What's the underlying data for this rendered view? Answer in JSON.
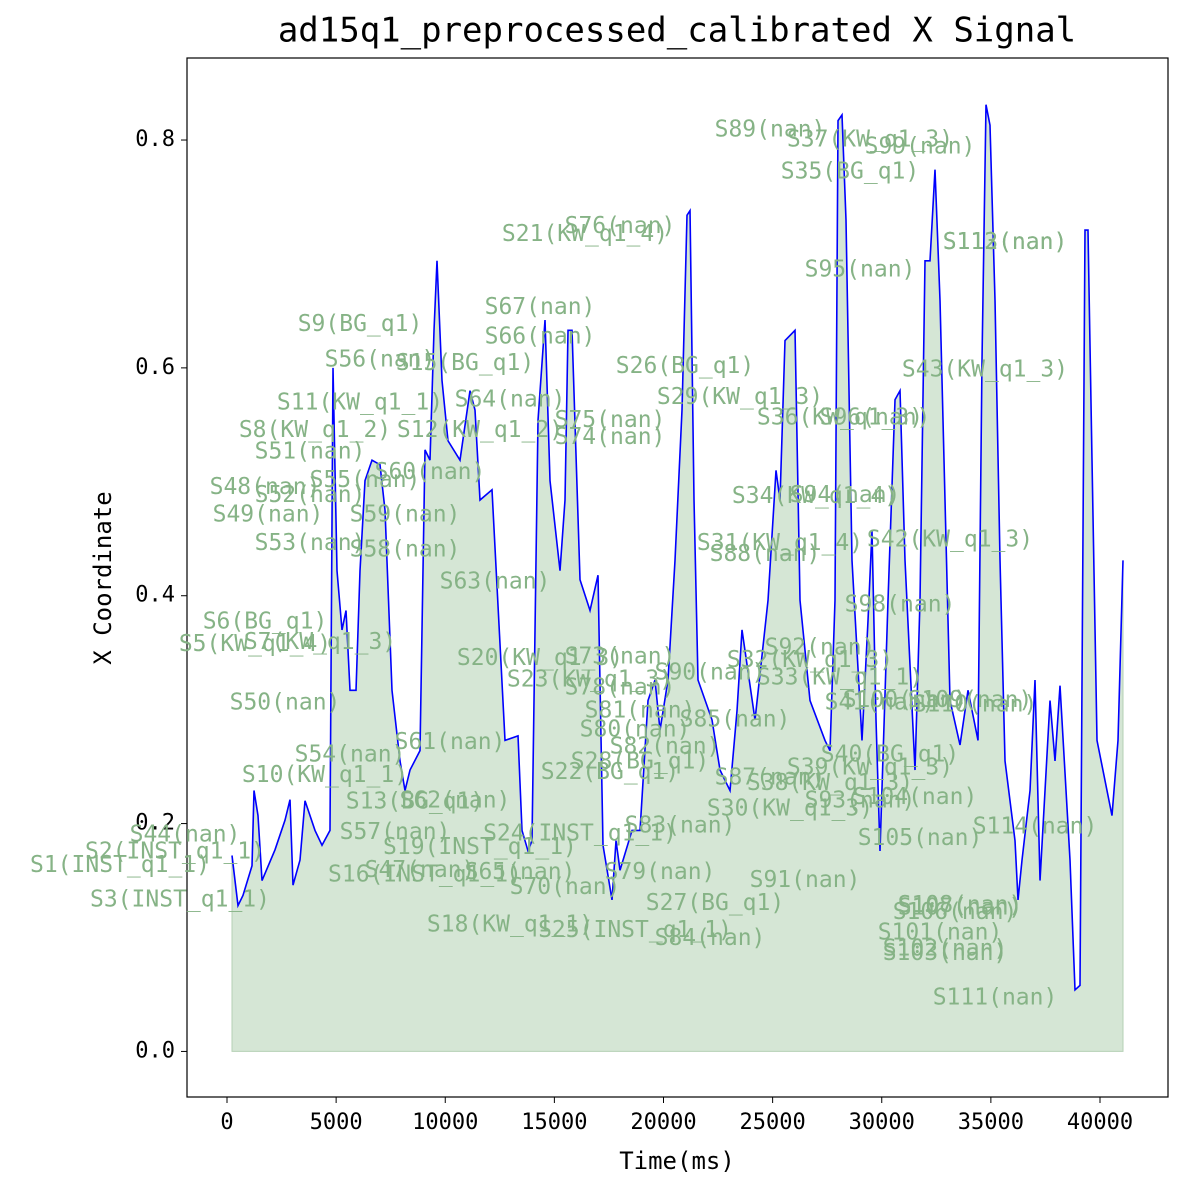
{
  "chart_data": {
    "type": "line",
    "title": "ad15q1_preprocessed_calibrated X Signal",
    "xlabel": "Time(ms)",
    "ylabel": "X Coordinate",
    "xlim": [
      -1833,
      43116
    ],
    "ylim": [
      -0.04,
      0.872
    ],
    "xticks": [
      0,
      5000,
      10000,
      15000,
      20000,
      25000,
      30000,
      35000,
      40000
    ],
    "yticks": [
      {
        "value": 0,
        "label": "0.0"
      },
      0.2,
      0.4,
      0.6,
      0.8
    ],
    "grid": false,
    "fill_color": "#d5e6d5",
    "fill_edge": "#b5d0b5",
    "annotation_color": "#86b386",
    "series": [
      {
        "color": "blue",
        "x": [
          229,
          504,
          733,
          1146,
          1237,
          1420,
          1604,
          2199,
          2658,
          2887,
          3024,
          3345,
          3574,
          4032,
          4353,
          4719,
          4857,
          5040,
          5269,
          5453,
          5636,
          5911,
          6094,
          6323,
          6644,
          7010,
          7240,
          7560,
          7927,
          8156,
          8385,
          8843,
          9072,
          9301,
          9485,
          9622,
          9851,
          10126,
          10676,
          11134,
          11363,
          11592,
          12142,
          12738,
          13334,
          13517,
          13792,
          13975,
          14250,
          14571,
          14800,
          15258,
          15487,
          15625,
          15808,
          16175,
          16633,
          16999,
          17228,
          17641,
          17824,
          18007,
          18557,
          18924,
          19290,
          19611,
          19840,
          20207,
          20527,
          20848,
          21077,
          21215,
          21398,
          21581,
          22223,
          22589,
          23048,
          23368,
          23597,
          24193,
          24789,
          25155,
          25338,
          25567,
          26026,
          26255,
          26713,
          27400,
          27629,
          27858,
          27996,
          28179,
          28362,
          28637,
          29095,
          29370,
          29553,
          29737,
          29920,
          30287,
          30608,
          30837,
          31066,
          31524,
          31753,
          31982,
          32211,
          32440,
          32670,
          33128,
          33586,
          33953,
          34411,
          34594,
          34777,
          34960,
          35190,
          35419,
          35648,
          36106,
          36244,
          36427,
          36794,
          37022,
          37252,
          37710,
          37939,
          38168,
          38626,
          38855,
          39084,
          39313,
          39450,
          39634,
          39863,
          40550,
          40825,
          41054
        ],
        "values": [
          0.172,
          0.128,
          0.137,
          0.163,
          0.229,
          0.207,
          0.15,
          0.177,
          0.203,
          0.221,
          0.146,
          0.168,
          0.22,
          0.194,
          0.181,
          0.194,
          0.6,
          0.422,
          0.37,
          0.387,
          0.317,
          0.317,
          0.422,
          0.501,
          0.519,
          0.515,
          0.475,
          0.317,
          0.255,
          0.229,
          0.247,
          0.264,
          0.528,
          0.519,
          0.633,
          0.694,
          0.589,
          0.536,
          0.519,
          0.58,
          0.563,
          0.484,
          0.493,
          0.273,
          0.277,
          0.194,
          0.176,
          0.185,
          0.554,
          0.642,
          0.501,
          0.422,
          0.484,
          0.633,
          0.633,
          0.414,
          0.387,
          0.418,
          0.181,
          0.133,
          0.185,
          0.159,
          0.194,
          0.194,
          0.308,
          0.326,
          0.282,
          0.326,
          0.431,
          0.563,
          0.734,
          0.738,
          0.484,
          0.326,
          0.291,
          0.247,
          0.229,
          0.299,
          0.37,
          0.291,
          0.396,
          0.51,
          0.484,
          0.624,
          0.633,
          0.396,
          0.308,
          0.273,
          0.264,
          0.396,
          0.817,
          0.822,
          0.73,
          0.431,
          0.273,
          0.378,
          0.457,
          0.291,
          0.176,
          0.396,
          0.572,
          0.58,
          0.431,
          0.247,
          0.396,
          0.694,
          0.694,
          0.774,
          0.659,
          0.308,
          0.269,
          0.317,
          0.273,
          0.607,
          0.831,
          0.813,
          0.659,
          0.431,
          0.255,
          0.185,
          0.133,
          0.168,
          0.229,
          0.326,
          0.15,
          0.308,
          0.255,
          0.321,
          0.168,
          0.054,
          0.058,
          0.721,
          0.721,
          0.519,
          0.273,
          0.207,
          0.273,
          0.431
        ]
      }
    ],
    "annotations": [
      {
        "text": "S1(INST_q1_1)",
        "x": -4903,
        "y": 0.163
      },
      {
        "text": "S2(INST_q1_1)",
        "x": -2383,
        "y": 0.175
      },
      {
        "text": "S3(INST_q1_1)",
        "x": -2154,
        "y": 0.133
      },
      {
        "text": "S44(nan)",
        "x": -1924,
        "y": 0.19
      },
      {
        "text": "S5(KW_q1_4)",
        "x": 1283,
        "y": 0.357
      },
      {
        "text": "S6(BG_q1)",
        "x": 1741,
        "y": 0.377
      },
      {
        "text": "S7(KW_q1_3)",
        "x": 4261,
        "y": 0.359
      },
      {
        "text": "S8(KW_q1_2)",
        "x": 4032,
        "y": 0.545
      },
      {
        "text": "S9(BG_q1)",
        "x": 6094,
        "y": 0.638
      },
      {
        "text": "S10(KW_q1_1)",
        "x": 4490,
        "y": 0.242
      },
      {
        "text": "S11(KW_q1_1)",
        "x": 6094,
        "y": 0.569
      },
      {
        "text": "S12(KW_q1_2)",
        "x": 11592,
        "y": 0.545
      },
      {
        "text": "S13(BG_q1)",
        "x": 8614,
        "y": 0.219
      },
      {
        "text": "S15(BG_q1)",
        "x": 10905,
        "y": 0.604
      },
      {
        "text": "S16(INST_q1_1)",
        "x": 9072,
        "y": 0.155
      },
      {
        "text": "S18(KW_q1_1)",
        "x": 12967,
        "y": 0.111
      },
      {
        "text": "S19(INST_q1_1)",
        "x": 11592,
        "y": 0.179
      },
      {
        "text": "S20(KW_q1_3)",
        "x": 14342,
        "y": 0.345
      },
      {
        "text": "S21(KW_q1_4)",
        "x": 16404,
        "y": 0.717
      },
      {
        "text": "S22(BG_q1)",
        "x": 17549,
        "y": 0.245
      },
      {
        "text": "S23(KW_q1_3)",
        "x": 16633,
        "y": 0.326
      },
      {
        "text": "S24(INST_q1_1)",
        "x": 16175,
        "y": 0.191
      },
      {
        "text": "S25(INST_q1_1)",
        "x": 18695,
        "y": 0.106
      },
      {
        "text": "S26(BG_q1)",
        "x": 20986,
        "y": 0.601
      },
      {
        "text": "S27(BG_q1)",
        "x": 22360,
        "y": 0.13
      },
      {
        "text": "S28(BG_q1)",
        "x": 18924,
        "y": 0.254
      },
      {
        "text": "S29(KW_q1_3)",
        "x": 23506,
        "y": 0.574
      },
      {
        "text": "S30(KW_q1_3)",
        "x": 25797,
        "y": 0.213
      },
      {
        "text": "S31(KW_q1_4)",
        "x": 25338,
        "y": 0.446
      },
      {
        "text": "S32(KW_q1_3)",
        "x": 26713,
        "y": 0.343
      },
      {
        "text": "S33(KW_q1_1)",
        "x": 28087,
        "y": 0.328
      },
      {
        "text": "S34(KW_q1_4)",
        "x": 26942,
        "y": 0.487
      },
      {
        "text": "S35(BG_q1)",
        "x": 28546,
        "y": 0.772
      },
      {
        "text": "S36(KW_q1_3)",
        "x": 28087,
        "y": 0.556
      },
      {
        "text": "S37(KW_q1_3)",
        "x": 29462,
        "y": 0.8
      },
      {
        "text": "S38(KW_q1_3)",
        "x": 27629,
        "y": 0.235
      },
      {
        "text": "S39(KW_q1_3)",
        "x": 29462,
        "y": 0.249
      },
      {
        "text": "S40(BG_q1)",
        "x": 30379,
        "y": 0.26
      },
      {
        "text": "S41(nan)",
        "x": 29920,
        "y": 0.306
      },
      {
        "text": "S42(KW_q1_3)",
        "x": 33128,
        "y": 0.449
      },
      {
        "text": "S43(KW_q1_3)",
        "x": 34731,
        "y": 0.598
      },
      {
        "text": "S47(nan)",
        "x": 8843,
        "y": 0.159
      },
      {
        "text": "S48(nan)",
        "x": 1741,
        "y": 0.495
      },
      {
        "text": "S49(nan)",
        "x": 1879,
        "y": 0.471
      },
      {
        "text": "S50(nan)",
        "x": 2658,
        "y": 0.306
      },
      {
        "text": "S51(nan)",
        "x": 3803,
        "y": 0.526
      },
      {
        "text": "S52(nan)",
        "x": 3803,
        "y": 0.488
      },
      {
        "text": "S53(nan)",
        "x": 3803,
        "y": 0.446
      },
      {
        "text": "S54(nan)",
        "x": 5636,
        "y": 0.26
      },
      {
        "text": "S55(nan)",
        "x": 6323,
        "y": 0.501
      },
      {
        "text": "S56(nan)",
        "x": 7010,
        "y": 0.607
      },
      {
        "text": "S57(nan)",
        "x": 7698,
        "y": 0.192
      },
      {
        "text": "S58(nan)",
        "x": 8156,
        "y": 0.44
      },
      {
        "text": "S59(nan)",
        "x": 8156,
        "y": 0.471
      },
      {
        "text": "S60(nan)",
        "x": 9301,
        "y": 0.508
      },
      {
        "text": "S61(nan)",
        "x": 10218,
        "y": 0.271
      },
      {
        "text": "S62(nan)",
        "x": 10447,
        "y": 0.22
      },
      {
        "text": "S63(nan)",
        "x": 12280,
        "y": 0.412
      },
      {
        "text": "S64(nan)",
        "x": 12967,
        "y": 0.572
      },
      {
        "text": "S65(nan)",
        "x": 13425,
        "y": 0.157
      },
      {
        "text": "S66(nan)",
        "x": 14342,
        "y": 0.627
      },
      {
        "text": "S67(nan)",
        "x": 14342,
        "y": 0.653
      },
      {
        "text": "S70(nan)",
        "x": 15487,
        "y": 0.144
      },
      {
        "text": "S73(nan)",
        "x": 18007,
        "y": 0.346
      },
      {
        "text": "S74(nan)",
        "x": 17549,
        "y": 0.539
      },
      {
        "text": "S75(nan)",
        "x": 17549,
        "y": 0.554
      },
      {
        "text": "S76(nan)",
        "x": 18007,
        "y": 0.724
      },
      {
        "text": "S78(nan)",
        "x": 18007,
        "y": 0.319
      },
      {
        "text": "S79(nan)",
        "x": 19840,
        "y": 0.157
      },
      {
        "text": "S80(nan)",
        "x": 18695,
        "y": 0.282
      },
      {
        "text": "S81(nan)",
        "x": 18924,
        "y": 0.299
      },
      {
        "text": "S82(nan)",
        "x": 20069,
        "y": 0.267
      },
      {
        "text": "S83(nan)",
        "x": 20757,
        "y": 0.198
      },
      {
        "text": "S84(nan)",
        "x": 22131,
        "y": 0.099
      },
      {
        "text": "S85(nan)",
        "x": 23277,
        "y": 0.291
      },
      {
        "text": "S87(nan)",
        "x": 24880,
        "y": 0.24
      },
      {
        "text": "S88(nan)",
        "x": 24651,
        "y": 0.436
      },
      {
        "text": "S89(nan)",
        "x": 24880,
        "y": 0.809
      },
      {
        "text": "S90(nan)",
        "x": 22131,
        "y": 0.332
      },
      {
        "text": "S91(nan)",
        "x": 26484,
        "y": 0.15
      },
      {
        "text": "S92(nan)",
        "x": 27171,
        "y": 0.354
      },
      {
        "text": "S93(nan)",
        "x": 29004,
        "y": 0.22
      },
      {
        "text": "S94(nan)",
        "x": 28317,
        "y": 0.488
      },
      {
        "text": "S95(nan)",
        "x": 29004,
        "y": 0.686
      },
      {
        "text": "S96(nan)",
        "x": 29691,
        "y": 0.556
      },
      {
        "text": "S98(nan)",
        "x": 30837,
        "y": 0.392
      },
      {
        "text": "S99(nan)",
        "x": 31753,
        "y": 0.794
      },
      {
        "text": "S100(nan)",
        "x": 31066,
        "y": 0.308
      },
      {
        "text": "S101(nan)",
        "x": 32670,
        "y": 0.104
      },
      {
        "text": "S102(nan)",
        "x": 32899,
        "y": 0.09
      },
      {
        "text": "S103(nan)",
        "x": 32899,
        "y": 0.086
      },
      {
        "text": "S104(nan)",
        "x": 31524,
        "y": 0.223
      },
      {
        "text": "S105(nan)",
        "x": 31753,
        "y": 0.187
      },
      {
        "text": "S106(nan)",
        "x": 33357,
        "y": 0.122
      },
      {
        "text": "S107(nan)",
        "x": 33586,
        "y": 0.126
      },
      {
        "text": "S108(nan)",
        "x": 33586,
        "y": 0.128
      },
      {
        "text": "S109(nan)",
        "x": 34044,
        "y": 0.308
      },
      {
        "text": "S110(nan)",
        "x": 34273,
        "y": 0.304
      },
      {
        "text": "S111(nan)",
        "x": 35190,
        "y": 0.047
      },
      {
        "text": "S112(nan)",
        "x": 35648,
        "y": 0.71
      },
      {
        "text": "S113(nan)",
        "x": 35648,
        "y": 0.71
      },
      {
        "text": "S114(nan)",
        "x": 37022,
        "y": 0.197
      }
    ]
  }
}
